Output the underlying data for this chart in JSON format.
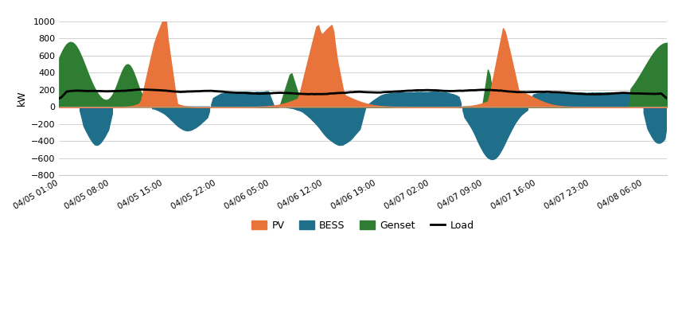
{
  "title": "",
  "ylabel": "kW",
  "ylim": [
    -800,
    1000
  ],
  "yticks": [
    -800,
    -600,
    -400,
    -200,
    0,
    200,
    400,
    600,
    800,
    1000
  ],
  "colors": {
    "PV": "#E8743B",
    "BESS": "#1F6F8B",
    "Genset": "#2E7D32",
    "Load": "#000000"
  },
  "x_labels": [
    "04/05 01:00",
    "04/05 08:00",
    "04/05 15:00",
    "04/05 22:00",
    "04/06 05:00",
    "04/06 12:00",
    "04/06 19:00",
    "04/07 02:00",
    "04/07 09:00",
    "04/07 16:00",
    "04/07 23:00",
    "04/08 06:00"
  ],
  "background_color": "#ffffff",
  "grid_color": "#d0d0d0"
}
